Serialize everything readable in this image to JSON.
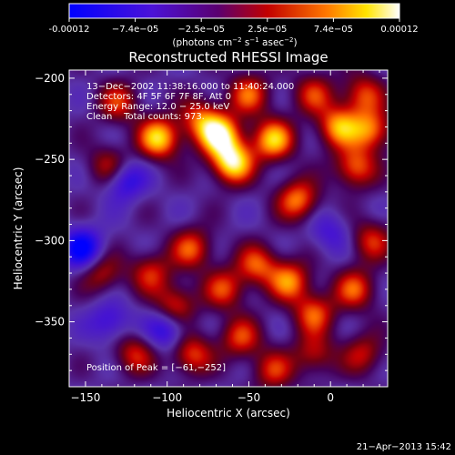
{
  "colorbar": {
    "ticks": [
      "-0.00012",
      "−7.4e−05",
      "−2.5e−05",
      "2.5e−05",
      "7.4e−05",
      "0.00012"
    ],
    "min": -0.00012,
    "max": 0.00012
  },
  "chart_data": {
    "type": "heatmap",
    "title": "Reconstructed RHESSI Image",
    "xlabel": "Heliocentric X (arcsec)",
    "ylabel": "Heliocentric Y (arcsec)",
    "xlim": [
      -160,
      35
    ],
    "ylim": [
      -390,
      -195
    ],
    "xticks": [
      -150,
      -100,
      -50,
      0
    ],
    "yticks": [
      -200,
      -250,
      -300,
      -350
    ],
    "xtick_labels": [
      "−150",
      "−100",
      "−50",
      "0"
    ],
    "ytick_labels": [
      "−200",
      "−250",
      "−300",
      "−350"
    ],
    "annotations": [
      "13−Dec−2002 11:38:16.000 to 11:40:24.000",
      "Detectors: 4F 5F 6F 7F 8F, Att 0",
      "Energy Range: 12.0 − 25.0 keV",
      "Clean    Total counts: 973."
    ],
    "peak_label": "Position of Peak = [−61,−252]",
    "peak": [
      -61,
      -252
    ],
    "hotspots": [
      {
        "x": -105,
        "y": -237,
        "v": 0.9
      },
      {
        "x": -68,
        "y": -235,
        "v": 1.0
      },
      {
        "x": -60,
        "y": -252,
        "v": 1.0
      },
      {
        "x": -35,
        "y": -238,
        "v": 0.85
      },
      {
        "x": -20,
        "y": -275,
        "v": 0.7
      },
      {
        "x": 5,
        "y": -230,
        "v": 0.75
      },
      {
        "x": 15,
        "y": -255,
        "v": 0.65
      },
      {
        "x": 25,
        "y": -232,
        "v": 0.7
      },
      {
        "x": -50,
        "y": -210,
        "v": 0.6
      },
      {
        "x": -10,
        "y": -210,
        "v": 0.5
      },
      {
        "x": 20,
        "y": -210,
        "v": 0.55
      },
      {
        "x": -80,
        "y": -225,
        "v": 0.55
      },
      {
        "x": -130,
        "y": -215,
        "v": 0.5
      },
      {
        "x": -135,
        "y": -255,
        "v": 0.55
      },
      {
        "x": -140,
        "y": -320,
        "v": 0.45
      },
      {
        "x": -110,
        "y": -320,
        "v": 0.5
      },
      {
        "x": -85,
        "y": -305,
        "v": 0.6
      },
      {
        "x": -95,
        "y": -340,
        "v": 0.55
      },
      {
        "x": -65,
        "y": -330,
        "v": 0.55
      },
      {
        "x": -45,
        "y": -315,
        "v": 0.6
      },
      {
        "x": -25,
        "y": -325,
        "v": 0.7
      },
      {
        "x": -10,
        "y": -345,
        "v": 0.6
      },
      {
        "x": 15,
        "y": -330,
        "v": 0.6
      },
      {
        "x": 25,
        "y": -300,
        "v": 0.5
      },
      {
        "x": -55,
        "y": -360,
        "v": 0.55
      },
      {
        "x": -120,
        "y": -370,
        "v": 0.5
      },
      {
        "x": -85,
        "y": -370,
        "v": 0.6
      },
      {
        "x": -10,
        "y": -370,
        "v": 0.45
      },
      {
        "x": 20,
        "y": -370,
        "v": 0.45
      },
      {
        "x": -35,
        "y": -380,
        "v": 0.5
      }
    ],
    "coldspots": [
      {
        "x": -127,
        "y": -262,
        "v": -0.6
      },
      {
        "x": -152,
        "y": -305,
        "v": -0.7
      },
      {
        "x": -100,
        "y": -355,
        "v": -0.5
      },
      {
        "x": -135,
        "y": -350,
        "v": -0.4
      },
      {
        "x": 0,
        "y": -295,
        "v": -0.3
      }
    ]
  },
  "timestamp": "21−Apr−2013 15:42",
  "colors": {
    "background": "#000000",
    "text": "#ffffff"
  }
}
